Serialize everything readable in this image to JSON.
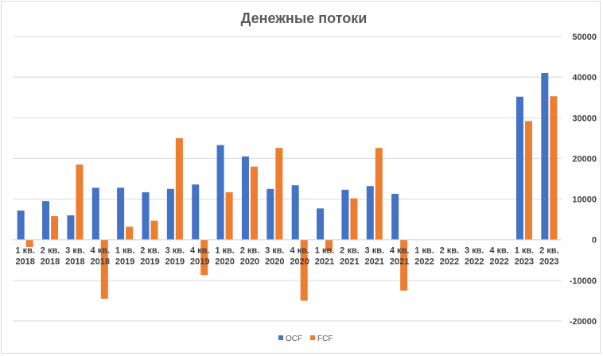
{
  "chart_data": {
    "type": "bar",
    "title": "Денежные потоки",
    "categories": [
      [
        "1 кв.",
        "2018"
      ],
      [
        "2 кв.",
        "2018"
      ],
      [
        "3 кв.",
        "2018"
      ],
      [
        "4 кв.",
        "2018"
      ],
      [
        "1 кв.",
        "2019"
      ],
      [
        "2 кв.",
        "2019"
      ],
      [
        "3 кв.",
        "2019"
      ],
      [
        "4 кв.",
        "2019"
      ],
      [
        "1 кв.",
        "2020"
      ],
      [
        "2 кв.",
        "2020"
      ],
      [
        "3 кв.",
        "2020"
      ],
      [
        "4 кв.",
        "2020"
      ],
      [
        "1 кв.",
        "2021"
      ],
      [
        "2 кв.",
        "2021"
      ],
      [
        "3 кв.",
        "2021"
      ],
      [
        "4 кв.",
        "2021"
      ],
      [
        "1 кв.",
        "2022"
      ],
      [
        "2 кв.",
        "2022"
      ],
      [
        "3 кв.",
        "2022"
      ],
      [
        "4 кв.",
        "2022"
      ],
      [
        "1 кв.",
        "2023"
      ],
      [
        "2 кв.",
        "2023"
      ]
    ],
    "series": [
      {
        "name": "OCF",
        "color": "#4472C4",
        "values": [
          7200,
          9500,
          6000,
          12800,
          12800,
          11700,
          12500,
          13600,
          23300,
          20500,
          12500,
          13400,
          7700,
          12300,
          13200,
          11300,
          0,
          0,
          0,
          0,
          35200,
          41000
        ]
      },
      {
        "name": "FCF",
        "color": "#ED7D31",
        "values": [
          -1800,
          5800,
          18500,
          -14500,
          3200,
          4700,
          25000,
          -8700,
          11700,
          18000,
          22600,
          -15000,
          -2800,
          10200,
          22600,
          -12500,
          0,
          0,
          0,
          0,
          29200,
          35300
        ]
      }
    ],
    "ylim": [
      -20000,
      50000
    ],
    "yticks": [
      "-20000",
      "-10000",
      "0",
      "10000",
      "20000",
      "30000",
      "40000",
      "50000"
    ],
    "ytick_values": [
      -20000,
      -10000,
      0,
      10000,
      20000,
      30000,
      40000,
      50000
    ],
    "grid": true,
    "yaxis_position": "right",
    "legend": "bottom"
  }
}
